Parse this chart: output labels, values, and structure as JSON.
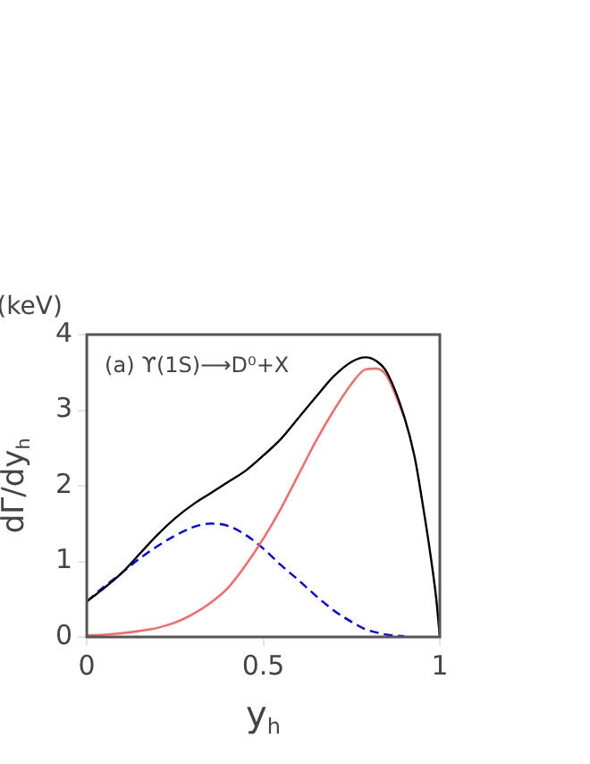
{
  "chart_data": {
    "type": "line",
    "xlabel": "y$_{h}$",
    "ylabel": "dΓ/dy$_{h}$",
    "annotations": [
      "(keV)",
      "(a) ϒ(1S)⟶D⁰+X"
    ],
    "xlim": [
      0,
      1
    ],
    "xticks": [
      0,
      0.5,
      1
    ],
    "ylim": [
      0,
      4
    ],
    "yticks": [
      0,
      1,
      2,
      3,
      4
    ],
    "grid": false,
    "legend": false,
    "marker": "none",
    "x": [
      0,
      0.05,
      0.1,
      0.15,
      0.2,
      0.25,
      0.3,
      0.35,
      0.4,
      0.45,
      0.5,
      0.55,
      0.6,
      0.65,
      0.7,
      0.75,
      0.79,
      0.82,
      0.85,
      0.9,
      0.93,
      0.95,
      0.97,
      0.99,
      1
    ],
    "series": [
      {
        "color": "#000000",
        "line_style": "solid",
        "values": [
          0.47,
          0.65,
          0.85,
          1.1,
          1.35,
          1.57,
          1.75,
          1.9,
          2.05,
          2.2,
          2.4,
          2.62,
          2.9,
          3.18,
          3.45,
          3.64,
          3.7,
          3.65,
          3.5,
          2.9,
          2.35,
          1.8,
          1.2,
          0.5,
          0
        ]
      },
      {
        "color": "#ff6666",
        "line_style": "solid",
        "values": [
          0.02,
          0.03,
          0.05,
          0.08,
          0.12,
          0.19,
          0.3,
          0.45,
          0.65,
          0.95,
          1.3,
          1.7,
          2.15,
          2.6,
          3.0,
          3.35,
          3.54,
          3.55,
          3.45,
          2.9,
          null,
          null,
          null,
          null,
          null
        ]
      },
      {
        "color": "#0000ff",
        "line_style": "dashed",
        "values": [
          0.47,
          0.67,
          0.85,
          1.04,
          1.2,
          1.34,
          1.45,
          1.5,
          1.47,
          1.35,
          1.17,
          0.95,
          0.75,
          0.54,
          0.35,
          0.2,
          0.1,
          0.06,
          0.03,
          0.01,
          null,
          null,
          null,
          null,
          null
        ]
      }
    ]
  }
}
